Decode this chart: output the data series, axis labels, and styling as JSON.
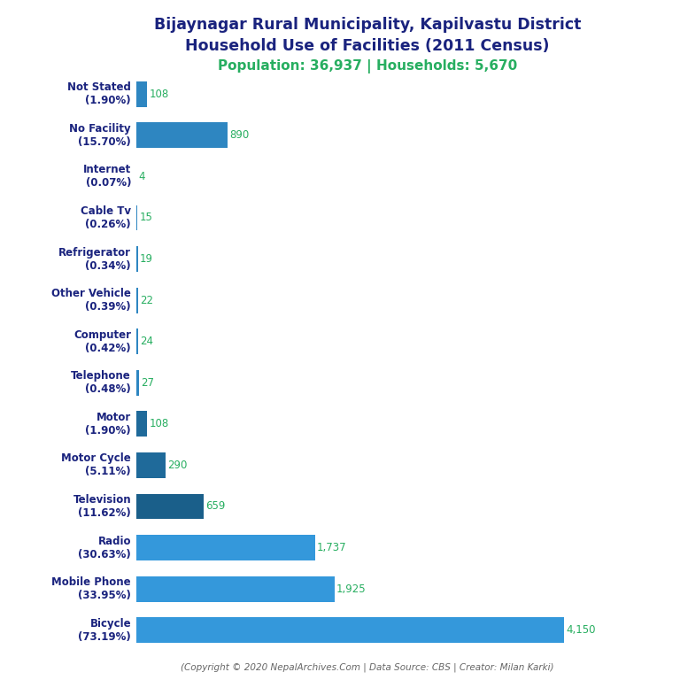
{
  "title_line1": "Bijaynagar Rural Municipality, Kapilvastu District",
  "title_line2": "Household Use of Facilities (2011 Census)",
  "subtitle": "Population: 36,937 | Households: 5,670",
  "footer": "(Copyright © 2020 NepalArchives.Com | Data Source: CBS | Creator: Milan Karki)",
  "categories": [
    "Not Stated\n(1.90%)",
    "No Facility\n(15.70%)",
    "Internet\n(0.07%)",
    "Cable Tv\n(0.26%)",
    "Refrigerator\n(0.34%)",
    "Other Vehicle\n(0.39%)",
    "Computer\n(0.42%)",
    "Telephone\n(0.48%)",
    "Motor\n(1.90%)",
    "Motor Cycle\n(5.11%)",
    "Television\n(11.62%)",
    "Radio\n(30.63%)",
    "Mobile Phone\n(33.95%)",
    "Bicycle\n(73.19%)"
  ],
  "values": [
    108,
    890,
    4,
    15,
    19,
    22,
    24,
    27,
    108,
    290,
    659,
    1737,
    1925,
    4150
  ],
  "bar_colors": [
    "#2e86c1",
    "#2e86c1",
    "#2e86c1",
    "#2e86c1",
    "#2e86c1",
    "#2e86c1",
    "#2e86c1",
    "#2e86c1",
    "#1f6a9a",
    "#1f6a9a",
    "#1a5f8a",
    "#3498db",
    "#3498db",
    "#3498db"
  ],
  "title_color": "#1a237e",
  "subtitle_color": "#27ae60",
  "label_color": "#1a237e",
  "value_color": "#27ae60",
  "footer_color": "#666666",
  "background_color": "#ffffff"
}
